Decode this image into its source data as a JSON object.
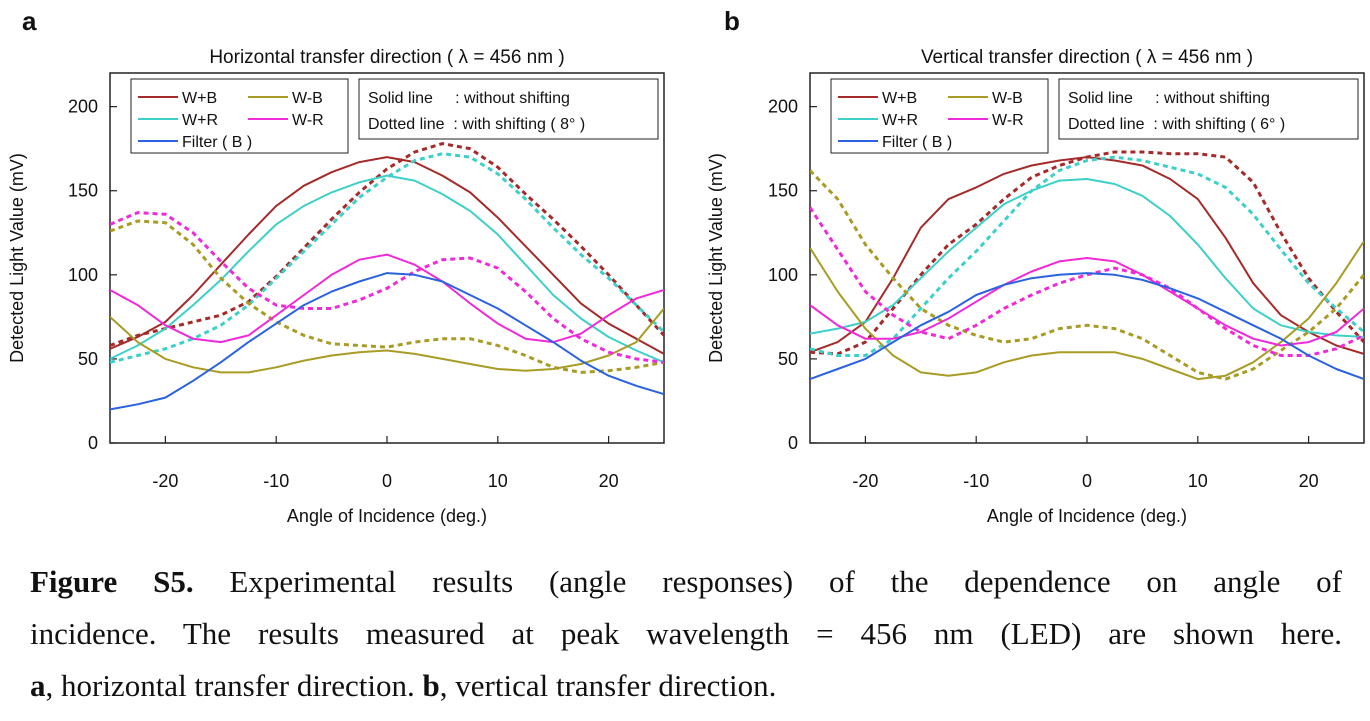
{
  "figure": {
    "caption": {
      "label": "Figure S5.",
      "line1_text": "Experimental results (angle responses) of the dependence on angle of",
      "line2": "incidence. The results measured at peak wavelength = 456 nm (LED) are shown here.",
      "line3_a": "a",
      "line3_a_text": ", horizontal transfer direction.",
      "line3_b": "b",
      "line3_b_text": ", vertical transfer direction."
    }
  },
  "colors": {
    "W+B": "#a52a2a",
    "W-B": "#a89c26",
    "W+R": "#3dd0c8",
    "W-R": "#f02ad8",
    "Filter ( B )": "#2a62e0"
  },
  "chart_data": [
    {
      "panel_label": "a",
      "type": "line",
      "title": "Horizontal transfer direction ( λ = 456 nm )",
      "xlabel": "Angle of Incidence (deg.)",
      "ylabel": "Detected Light Value (mV)",
      "xlim": [
        -25,
        25
      ],
      "ylim": [
        0,
        220
      ],
      "xticks": [
        -20,
        -10,
        0,
        10,
        20
      ],
      "yticks": [
        0,
        50,
        100,
        150,
        200
      ],
      "grid": false,
      "legend_position": "top-left",
      "legend": [
        "W+B",
        "W-B",
        "W+R",
        "W-R",
        "Filter ( B )"
      ],
      "annotation": [
        "Solid line     : without shifting",
        "Dotted line  : with shifting ( 8° )"
      ],
      "x": [
        -25,
        -22.5,
        -20,
        -17.5,
        -15,
        -12.5,
        -10,
        -7.5,
        -5,
        -2.5,
        0,
        2.5,
        5,
        7.5,
        10,
        12.5,
        15,
        17.5,
        20,
        22.5,
        25
      ],
      "series": [
        {
          "name": "W+B",
          "style": "solid",
          "values": [
            56,
            63,
            72,
            88,
            106,
            124,
            141,
            153,
            161,
            167,
            170,
            167,
            159,
            149,
            134,
            117,
            100,
            83,
            71,
            62,
            53
          ]
        },
        {
          "name": "W+B",
          "style": "dotted",
          "values": [
            58,
            64,
            68,
            72,
            76,
            84,
            99,
            116,
            133,
            149,
            163,
            173,
            178,
            175,
            164,
            148,
            133,
            117,
            100,
            82,
            64
          ]
        },
        {
          "name": "W+R",
          "style": "solid",
          "values": [
            50,
            58,
            68,
            82,
            97,
            114,
            130,
            141,
            149,
            155,
            159,
            156,
            148,
            138,
            124,
            106,
            88,
            74,
            63,
            55,
            48
          ]
        },
        {
          "name": "W+R",
          "style": "dotted",
          "values": [
            48,
            52,
            56,
            62,
            70,
            82,
            98,
            114,
            130,
            146,
            158,
            168,
            172,
            170,
            160,
            145,
            128,
            112,
            98,
            82,
            66
          ]
        },
        {
          "name": "W-B",
          "style": "solid",
          "values": [
            75,
            60,
            50,
            45,
            42,
            42,
            45,
            49,
            52,
            54,
            55,
            53,
            50,
            47,
            44,
            43,
            44,
            47,
            52,
            60,
            80
          ]
        },
        {
          "name": "W-B",
          "style": "dotted",
          "values": [
            126,
            132,
            131,
            118,
            98,
            83,
            72,
            64,
            59,
            58,
            57,
            60,
            62,
            62,
            58,
            52,
            45,
            42,
            43,
            45,
            48
          ]
        },
        {
          "name": "W-R",
          "style": "solid",
          "values": [
            91,
            82,
            70,
            62,
            60,
            64,
            76,
            88,
            100,
            109,
            112,
            106,
            96,
            83,
            71,
            62,
            60,
            65,
            76,
            86,
            91
          ]
        },
        {
          "name": "W-R",
          "style": "dotted",
          "values": [
            130,
            137,
            136,
            125,
            108,
            92,
            82,
            80,
            80,
            85,
            92,
            102,
            109,
            110,
            104,
            90,
            74,
            62,
            54,
            50,
            48
          ]
        },
        {
          "name": "Filter ( B )",
          "style": "solid",
          "values": [
            20,
            23,
            27,
            37,
            48,
            60,
            71,
            82,
            90,
            96,
            101,
            100,
            96,
            88,
            80,
            70,
            60,
            49,
            40,
            34,
            29
          ]
        }
      ]
    },
    {
      "panel_label": "b",
      "type": "line",
      "title": "Vertical transfer direction ( λ = 456 nm )",
      "xlabel": "Angle of Incidence (deg.)",
      "ylabel": "Detected Light Value (mV)",
      "xlim": [
        -25,
        25
      ],
      "ylim": [
        0,
        220
      ],
      "xticks": [
        -20,
        -10,
        0,
        10,
        20
      ],
      "yticks": [
        0,
        50,
        100,
        150,
        200
      ],
      "grid": false,
      "legend_position": "top-left",
      "legend": [
        "W+B",
        "W-B",
        "W+R",
        "W-R",
        "Filter ( B )"
      ],
      "annotation": [
        "Solid line     : without shifting",
        "Dotted line  : with shifting ( 6° )"
      ],
      "x": [
        -25,
        -22.5,
        -20,
        -17.5,
        -15,
        -12.5,
        -10,
        -7.5,
        -5,
        -2.5,
        0,
        2.5,
        5,
        7.5,
        10,
        12.5,
        15,
        17.5,
        20,
        22.5,
        25
      ],
      "series": [
        {
          "name": "W+B",
          "style": "solid",
          "values": [
            54,
            60,
            72,
            98,
            128,
            145,
            152,
            160,
            165,
            168,
            170,
            168,
            165,
            157,
            145,
            122,
            95,
            76,
            66,
            58,
            53
          ]
        },
        {
          "name": "W+B",
          "style": "dotted",
          "values": [
            54,
            53,
            60,
            80,
            100,
            118,
            130,
            145,
            158,
            165,
            170,
            173,
            173,
            172,
            172,
            170,
            155,
            125,
            98,
            78,
            60
          ]
        },
        {
          "name": "W+R",
          "style": "solid",
          "values": [
            65,
            68,
            72,
            82,
            98,
            114,
            128,
            142,
            150,
            156,
            157,
            154,
            147,
            135,
            118,
            98,
            80,
            70,
            66,
            64,
            63
          ]
        },
        {
          "name": "W+R",
          "style": "dotted",
          "values": [
            56,
            52,
            52,
            62,
            80,
            98,
            114,
            132,
            150,
            162,
            168,
            170,
            168,
            164,
            160,
            152,
            136,
            115,
            95,
            80,
            66
          ]
        },
        {
          "name": "W-B",
          "style": "solid",
          "values": [
            116,
            90,
            68,
            52,
            42,
            40,
            42,
            48,
            52,
            54,
            54,
            54,
            50,
            44,
            38,
            40,
            48,
            60,
            74,
            95,
            120
          ]
        },
        {
          "name": "W-B",
          "style": "dotted",
          "values": [
            162,
            145,
            118,
            98,
            80,
            70,
            64,
            60,
            62,
            68,
            70,
            68,
            62,
            52,
            42,
            38,
            44,
            55,
            66,
            80,
            100
          ]
        },
        {
          "name": "W-R",
          "style": "solid",
          "values": [
            82,
            70,
            62,
            62,
            66,
            74,
            84,
            94,
            102,
            108,
            110,
            108,
            100,
            90,
            80,
            70,
            62,
            58,
            60,
            66,
            80
          ]
        },
        {
          "name": "W-R",
          "style": "dotted",
          "values": [
            140,
            115,
            90,
            76,
            66,
            62,
            70,
            80,
            88,
            95,
            100,
            104,
            100,
            92,
            80,
            68,
            58,
            52,
            52,
            56,
            64
          ]
        },
        {
          "name": "Filter ( B )",
          "style": "solid",
          "values": [
            38,
            44,
            50,
            60,
            70,
            78,
            88,
            94,
            98,
            100,
            101,
            100,
            97,
            92,
            86,
            78,
            70,
            62,
            52,
            44,
            38
          ]
        }
      ]
    }
  ]
}
